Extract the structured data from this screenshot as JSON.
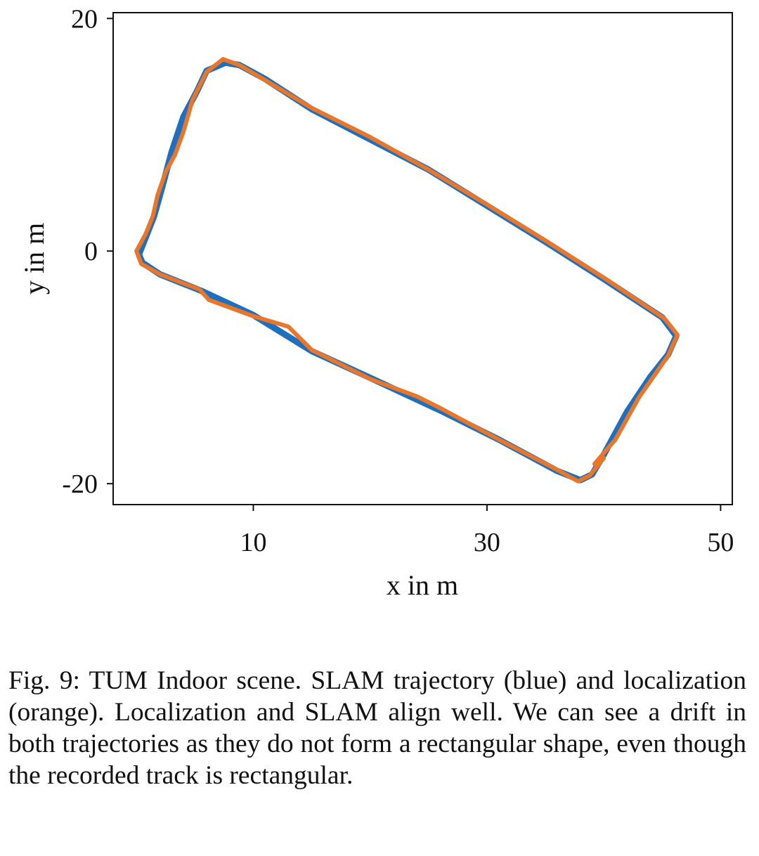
{
  "chart_data": {
    "type": "line",
    "title": "",
    "xlabel": "x in m",
    "ylabel": "y in m",
    "xlim": [
      -2,
      51
    ],
    "ylim": [
      -21.8,
      20.5
    ],
    "xticks": [
      10,
      30,
      50
    ],
    "xtick_labels": [
      "10",
      "30",
      "50"
    ],
    "yticks": [
      20,
      0,
      -20
    ],
    "ytick_labels": [
      "20",
      "0",
      "-20"
    ],
    "grid": false,
    "legend": "none",
    "series": [
      {
        "name": "SLAM trajectory",
        "color": "#1f6fbf",
        "points": [
          [
            0.2,
            -0.3
          ],
          [
            0.5,
            -1.0
          ],
          [
            2.0,
            -2.0
          ],
          [
            5.5,
            -3.4
          ],
          [
            10.0,
            -5.5
          ],
          [
            15.0,
            -8.6
          ],
          [
            20.0,
            -10.9
          ],
          [
            26.0,
            -13.7
          ],
          [
            31.0,
            -16.2
          ],
          [
            36.0,
            -18.9
          ],
          [
            38.0,
            -19.7
          ],
          [
            39.0,
            -19.2
          ],
          [
            40.0,
            -17.5
          ],
          [
            42.0,
            -13.8
          ],
          [
            44.0,
            -10.8
          ],
          [
            45.5,
            -8.9
          ],
          [
            46.2,
            -7.3
          ],
          [
            45.0,
            -5.7
          ],
          [
            40.0,
            -2.4
          ],
          [
            35.0,
            0.8
          ],
          [
            30.0,
            3.9
          ],
          [
            25.0,
            7.0
          ],
          [
            20.0,
            9.6
          ],
          [
            15.0,
            12.2
          ],
          [
            11.0,
            14.8
          ],
          [
            8.8,
            16.0
          ],
          [
            7.6,
            16.2
          ],
          [
            6.0,
            15.5
          ],
          [
            5.2,
            13.8
          ],
          [
            4.0,
            11.5
          ],
          [
            3.0,
            8.5
          ],
          [
            2.2,
            5.5
          ],
          [
            1.5,
            3.0
          ],
          [
            0.8,
            1.2
          ],
          [
            0.2,
            -0.3
          ]
        ]
      },
      {
        "name": "localization",
        "color": "#e8762b",
        "points": [
          [
            0.0,
            0.0
          ],
          [
            0.4,
            -1.1
          ],
          [
            2.0,
            -2.0
          ],
          [
            5.4,
            -3.3
          ],
          [
            6.2,
            -4.2
          ],
          [
            10.0,
            -5.6
          ],
          [
            13.0,
            -6.5
          ],
          [
            15.0,
            -8.5
          ],
          [
            20.0,
            -11.0
          ],
          [
            24.0,
            -12.5
          ],
          [
            26.0,
            -13.5
          ],
          [
            31.0,
            -16.2
          ],
          [
            36.0,
            -18.8
          ],
          [
            37.8,
            -19.8
          ],
          [
            38.8,
            -19.3
          ],
          [
            40.0,
            -17.8
          ],
          [
            39.2,
            -18.3
          ],
          [
            41.0,
            -16.2
          ],
          [
            43.0,
            -12.6
          ],
          [
            45.5,
            -9.0
          ],
          [
            46.3,
            -7.2
          ],
          [
            45.2,
            -5.8
          ],
          [
            40.0,
            -2.3
          ],
          [
            35.0,
            0.9
          ],
          [
            30.0,
            4.0
          ],
          [
            25.0,
            7.0
          ],
          [
            20.0,
            9.8
          ],
          [
            15.0,
            12.3
          ],
          [
            11.0,
            14.7
          ],
          [
            8.8,
            16.0
          ],
          [
            7.4,
            16.5
          ],
          [
            6.0,
            15.4
          ],
          [
            4.8,
            13.0
          ],
          [
            4.0,
            10.2
          ],
          [
            3.3,
            8.3
          ],
          [
            2.5,
            6.8
          ],
          [
            1.8,
            4.8
          ],
          [
            1.4,
            3.0
          ],
          [
            0.8,
            1.5
          ],
          [
            0.0,
            0.0
          ]
        ]
      }
    ]
  },
  "caption": "Fig. 9: TUM Indoor scene. SLAM trajectory (blue) and localization (orange). Localization and SLAM align well. We can see a drift in both trajectories as they do not form a rectangular shape, even though the recorded track is rectangular."
}
